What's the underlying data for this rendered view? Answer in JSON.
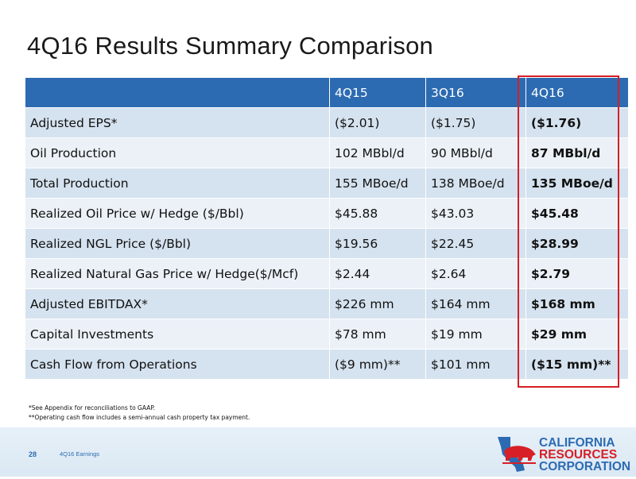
{
  "title": "4Q16 Results Summary Comparison",
  "table": {
    "headers": [
      "",
      "4Q15",
      "3Q16",
      "4Q16"
    ],
    "rows": [
      [
        "Adjusted EPS*",
        "($2.01)",
        "($1.75)",
        "($1.76)"
      ],
      [
        "Oil Production",
        "102 MBbl/d",
        "90 MBbl/d",
        "87 MBbl/d"
      ],
      [
        "Total Production",
        "155 MBoe/d",
        "138 MBoe/d",
        "135 MBoe/d"
      ],
      [
        "Realized Oil Price w/ Hedge ($/Bbl)",
        "$45.88",
        "$43.03",
        "$45.48"
      ],
      [
        "Realized NGL Price ($/Bbl)",
        "$19.56",
        "$22.45",
        "$28.99"
      ],
      [
        "Realized Natural Gas Price w/ Hedge($/Mcf)",
        "$2.44",
        "$2.64",
        "$2.79"
      ],
      [
        "Adjusted EBITDAX*",
        "$226 mm",
        "$164 mm",
        "$168 mm"
      ],
      [
        "Capital Investments",
        "$78 mm",
        "$19 mm",
        "$29 mm"
      ],
      [
        "Cash Flow from Operations",
        "($9 mm)**",
        "$101 mm",
        "($15 mm)**"
      ]
    ]
  },
  "footnotes": [
    "*See Appendix for reconciliations to GAAP.",
    "**Operating cash flow includes a semi-annual cash property tax payment."
  ],
  "footer": {
    "page_number": "28",
    "label": "4Q16 Earnings"
  },
  "logo": {
    "line1": "CALIFORNIA",
    "line2": "RESOURCES",
    "line3": "CORPORATION"
  },
  "colors": {
    "header_blue": "#2c6bb2",
    "highlight_red": "#d61f26"
  }
}
